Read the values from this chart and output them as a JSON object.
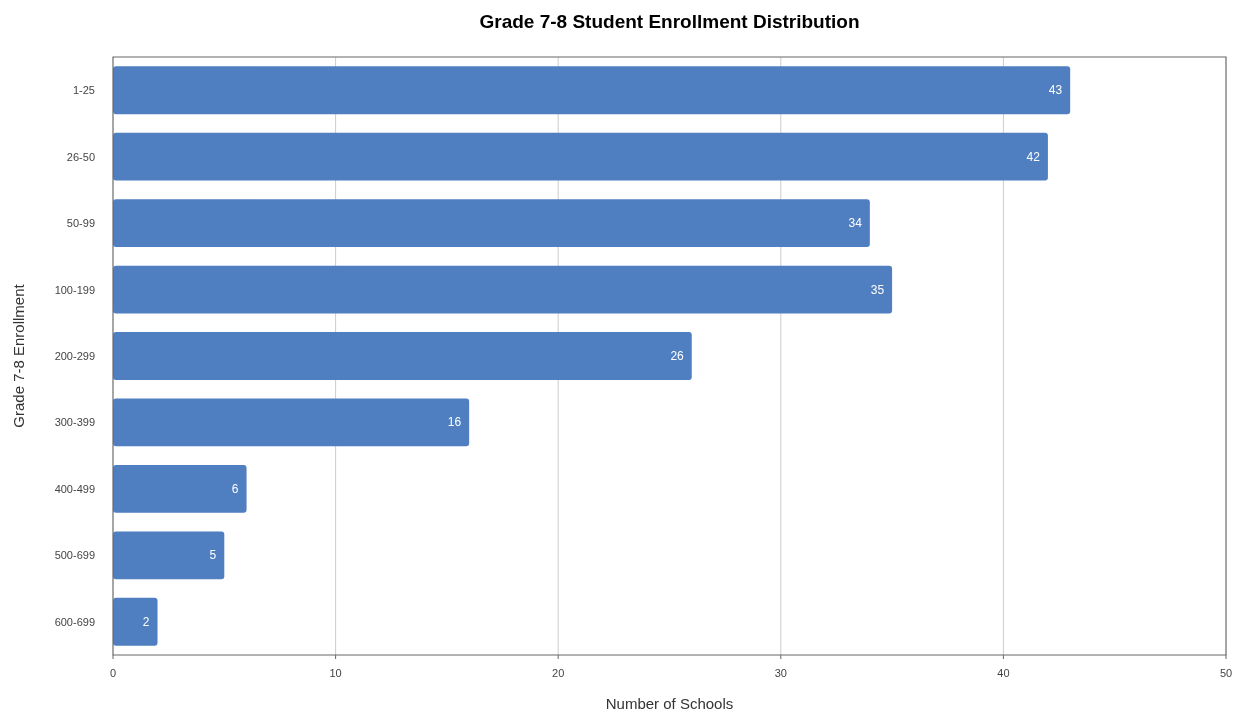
{
  "chart_data": {
    "type": "bar",
    "orientation": "horizontal",
    "title": "Grade 7-8 Student Enrollment Distribution",
    "xlabel": "Number of Schools",
    "ylabel": "Grade 7-8 Enrollment",
    "categories": [
      "1-25",
      "26-50",
      "50-99",
      "100-199",
      "200-299",
      "300-399",
      "400-499",
      "500-699",
      "600-699"
    ],
    "values": [
      43,
      42,
      34,
      35,
      26,
      16,
      6,
      5,
      2
    ],
    "color": "#4f7fc0",
    "xlim": [
      0,
      50
    ],
    "xticks": [
      0,
      10,
      20,
      30,
      40,
      50
    ],
    "grid": "x",
    "data_labels": true
  }
}
